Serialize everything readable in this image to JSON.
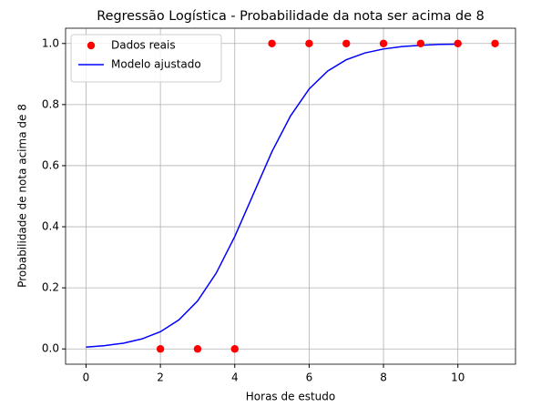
{
  "chart_data": {
    "type": "scatter",
    "title": "Regressão Logística - Probabilidade da nota ser acima de 8",
    "x_label": "Horas de estudo",
    "y_label": "Probabilidade de nota acima de 8",
    "xlim": [
      -0.55,
      11.55
    ],
    "xticks": [
      0,
      2,
      4,
      6,
      8,
      10
    ],
    "ylim": [
      -0.05,
      1.05
    ],
    "yticks": [
      {
        "value": 0,
        "label": "0.0"
      },
      0.2,
      0.4,
      0.6,
      0.8,
      {
        "value": 1,
        "label": "1.0"
      }
    ],
    "grid": true,
    "legend": "upper-left",
    "series": [
      {
        "name": "Dados reais",
        "type": "scatter",
        "color": "#ff0000",
        "x": [
          2,
          3,
          4,
          5,
          6,
          7,
          8,
          9,
          10,
          11
        ],
        "values": [
          0,
          0,
          0,
          1,
          1,
          1,
          1,
          1,
          1,
          1
        ]
      },
      {
        "name": "Modelo ajustado",
        "type": "line",
        "color": "#0000ff",
        "x": [
          0,
          0.5,
          1,
          1.5,
          2,
          2.5,
          3,
          3.5,
          4,
          4.5,
          5,
          5.5,
          6,
          6.5,
          7,
          7.5,
          8,
          8.5,
          9,
          9.5,
          10
        ],
        "values": [
          0.006,
          0.0107,
          0.0187,
          0.0326,
          0.0562,
          0.0953,
          0.157,
          0.248,
          0.368,
          0.507,
          0.646,
          0.763,
          0.851,
          0.91,
          0.947,
          0.969,
          0.982,
          0.99,
          0.994,
          0.997,
          0.998
        ]
      }
    ]
  }
}
